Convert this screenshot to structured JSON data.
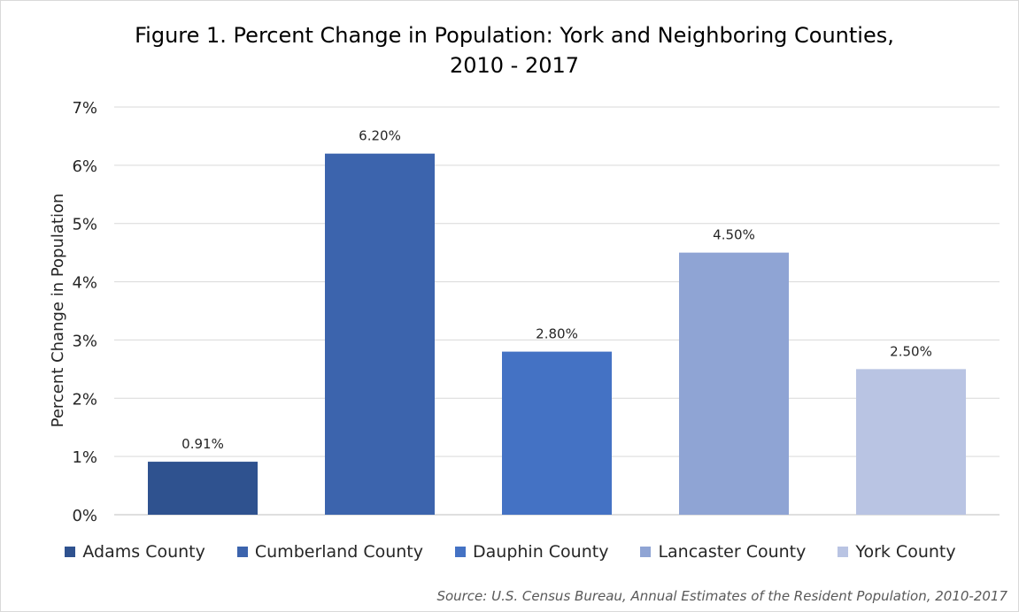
{
  "chart_data": {
    "type": "bar",
    "title": "Figure 1. Percent Change in Population: York and Neighboring Counties, 2010 - 2017",
    "ylabel": "Percent Change in Population",
    "xlabel": "",
    "ylim": [
      0,
      7
    ],
    "yticks": [
      "0%",
      "1%",
      "2%",
      "3%",
      "4%",
      "5%",
      "6%",
      "7%"
    ],
    "grid": true,
    "legend_position": "bottom",
    "categories": [
      "Adams County",
      "Cumberland County",
      "Dauphin County",
      "Lancaster County",
      "York County"
    ],
    "values": [
      0.91,
      6.2,
      2.8,
      4.5,
      2.5
    ],
    "data_labels": [
      "0.91%",
      "6.20%",
      "2.80%",
      "4.50%",
      "2.50%"
    ],
    "colors": [
      "#2f528f",
      "#3c64ad",
      "#4472c4",
      "#8fa4d4",
      "#b9c4e3"
    ]
  },
  "source": "Source: U.S. Census Bureau, Annual Estimates of the Resident Population, 2010-2017"
}
